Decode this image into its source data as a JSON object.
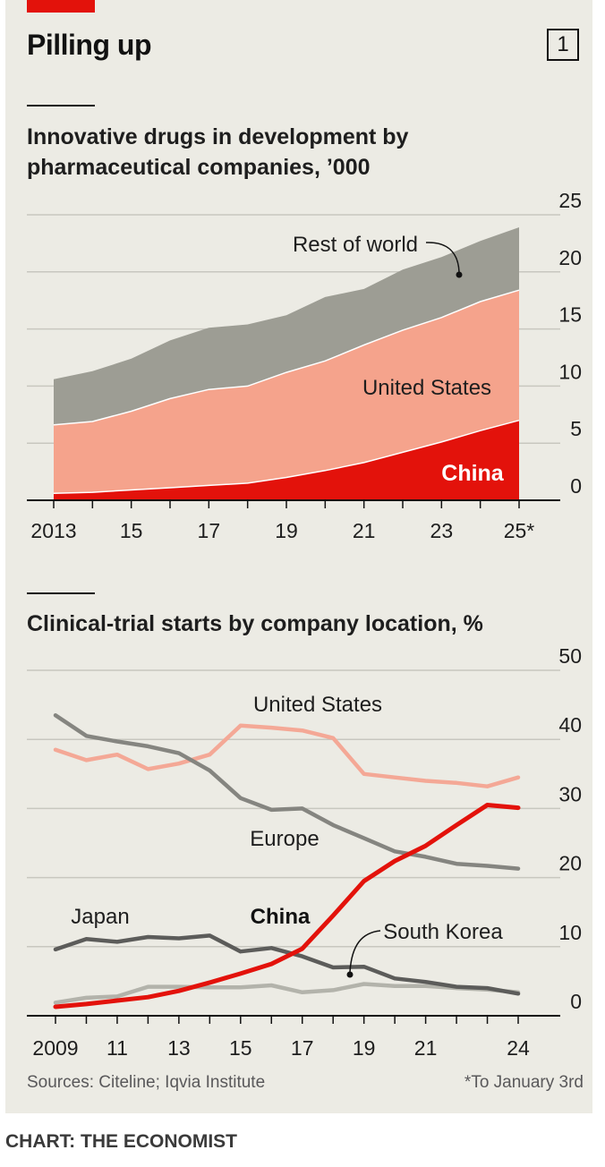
{
  "title": "Pilling up",
  "chart_number": "1",
  "source": "Sources: Citeline; Iqvia Institute",
  "footnote": "*To January 3rd",
  "credit": "CHART: THE ECONOMIST",
  "colors": {
    "background": "#ecebe4",
    "china": "#e3120b",
    "united_states_area": "#f5a38c",
    "rest_of_world_area": "#9d9d94",
    "united_states_line": "#f4a896",
    "europe_line": "#858580",
    "japan_line": "#5c5c5a",
    "south_korea_line": "#b3b3ab"
  },
  "chart_data": [
    {
      "type": "area",
      "stacked": true,
      "title": "Innovative drugs in development by pharmaceutical companies, ’000",
      "x": [
        2013,
        2014,
        2015,
        2016,
        2017,
        2018,
        2019,
        2020,
        2021,
        2022,
        2023,
        2024,
        2025
      ],
      "x_tick_values": [
        2013,
        2015,
        2017,
        2019,
        2021,
        2023,
        2025
      ],
      "x_tick_labels": [
        "2013",
        "15",
        "17",
        "19",
        "21",
        "23",
        "25*"
      ],
      "ylim": [
        0,
        25
      ],
      "y_ticks": [
        0,
        5,
        10,
        15,
        20,
        25
      ],
      "y_tick_labels": [
        "0",
        "5",
        "10",
        "15",
        "20",
        "25"
      ],
      "series": [
        {
          "name": "China",
          "label": "China",
          "color": "#e3120b",
          "values": [
            0.6,
            0.7,
            0.9,
            1.1,
            1.3,
            1.5,
            2.0,
            2.6,
            3.3,
            4.2,
            5.1,
            6.1,
            7.0
          ]
        },
        {
          "name": "United States",
          "label": "United States",
          "color": "#f5a38c",
          "values": [
            6.0,
            6.2,
            6.9,
            7.8,
            8.4,
            8.5,
            9.2,
            9.6,
            10.3,
            10.7,
            10.9,
            11.3,
            11.4
          ]
        },
        {
          "name": "Rest of world",
          "label": "Rest of world",
          "color": "#9d9d94",
          "values": [
            4.0,
            4.4,
            4.6,
            5.1,
            5.4,
            5.4,
            5.0,
            5.6,
            4.9,
            5.3,
            5.3,
            5.3,
            5.5
          ]
        }
      ]
    },
    {
      "type": "line",
      "title": "Clinical-trial starts by company location, %",
      "x": [
        2009,
        2010,
        2011,
        2012,
        2013,
        2014,
        2015,
        2016,
        2017,
        2018,
        2019,
        2020,
        2021,
        2022,
        2023,
        2024
      ],
      "x_tick_values": [
        2009,
        2011,
        2013,
        2015,
        2017,
        2019,
        2021,
        2024
      ],
      "x_tick_labels": [
        "2009",
        "11",
        "13",
        "15",
        "17",
        "19",
        "21",
        "24"
      ],
      "ylim": [
        0,
        50
      ],
      "y_ticks": [
        0,
        10,
        20,
        30,
        40,
        50
      ],
      "y_tick_labels": [
        "0",
        "10",
        "20",
        "30",
        "40",
        "50"
      ],
      "series": [
        {
          "name": "United States",
          "label": "United States",
          "color": "#f4a896",
          "values": [
            38.5,
            37,
            37.8,
            35.7,
            36.5,
            37.8,
            42,
            41.7,
            41.3,
            40.2,
            35,
            34.5,
            34,
            33.7,
            33.2,
            34.5
          ]
        },
        {
          "name": "Europe",
          "label": "Europe",
          "color": "#858580",
          "values": [
            43.5,
            40.5,
            39.7,
            39,
            38,
            35.5,
            31.5,
            29.8,
            30,
            27.6,
            25.7,
            23.8,
            23,
            22,
            21.7,
            21.3
          ]
        },
        {
          "name": "China",
          "label": "China",
          "color": "#e3120b",
          "values": [
            1.3,
            1.7,
            2.2,
            2.7,
            3.6,
            4.8,
            6.1,
            7.5,
            9.7,
            14.5,
            19.5,
            22.4,
            24.6,
            27.6,
            30.5,
            30.1
          ]
        },
        {
          "name": "Japan",
          "label": "Japan",
          "color": "#5c5c5a",
          "values": [
            9.6,
            11.1,
            10.7,
            11.4,
            11.2,
            11.6,
            9.3,
            9.8,
            8.6,
            7.0,
            7.1,
            5.4,
            4.9,
            4.2,
            4.0,
            3.2
          ]
        },
        {
          "name": "South Korea",
          "label": "South Korea",
          "color": "#b3b3ab",
          "values": [
            1.9,
            2.6,
            2.8,
            4.2,
            4.2,
            4.1,
            4.1,
            4.4,
            3.4,
            3.7,
            4.6,
            4.3,
            4.3,
            4.0,
            3.8,
            3.4
          ]
        }
      ]
    }
  ]
}
